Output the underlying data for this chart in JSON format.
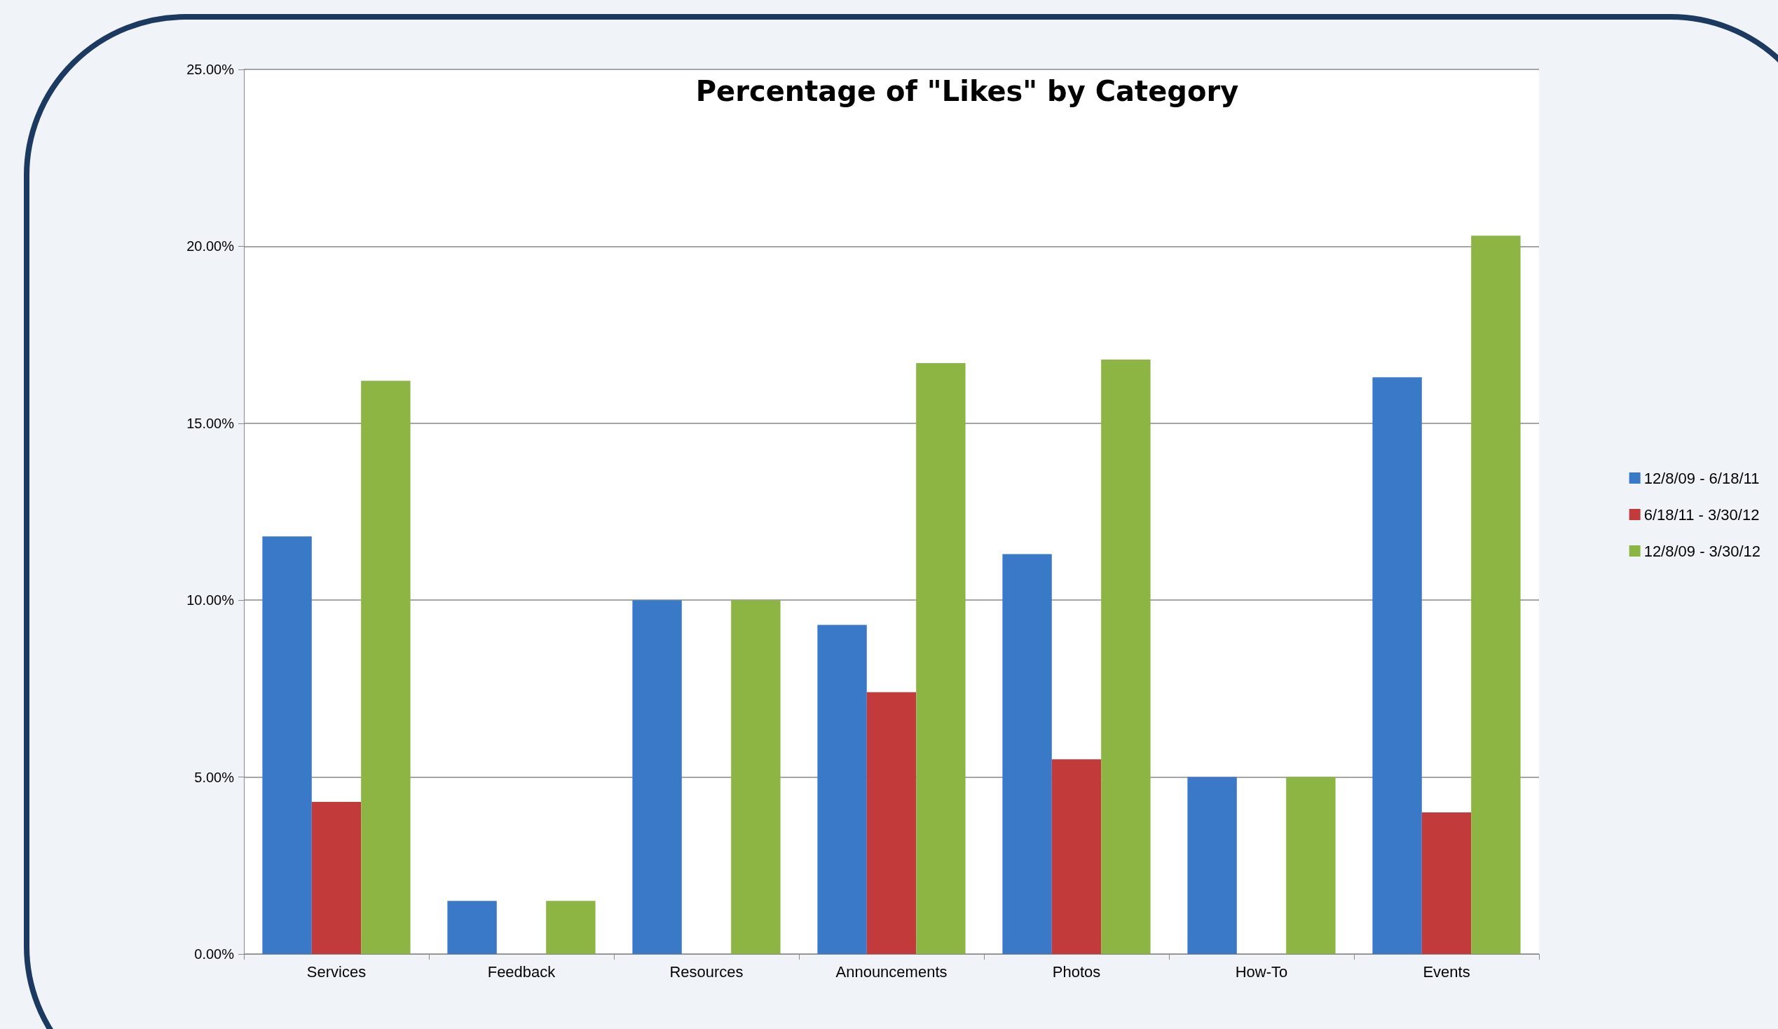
{
  "chart_data": {
    "type": "bar",
    "title": "Percentage of \"Likes\" by Category",
    "categories": [
      "Services",
      "Feedback",
      "Resources",
      "Announcements",
      "Photos",
      "How-To",
      "Events"
    ],
    "series": [
      {
        "name": "12/8/09 - 6/18/11",
        "color": "#3a78c8",
        "values": [
          11.8,
          1.5,
          10.0,
          9.3,
          11.3,
          5.0,
          16.3
        ]
      },
      {
        "name": "6/18/11 - 3/30/12",
        "color": "#c23b3a",
        "values": [
          4.3,
          null,
          null,
          7.4,
          5.5,
          null,
          4.0
        ]
      },
      {
        "name": "12/8/09 - 3/30/12",
        "color": "#8db544",
        "values": [
          16.2,
          1.5,
          10.0,
          16.7,
          16.8,
          5.0,
          20.3
        ]
      }
    ],
    "ylim": [
      0,
      25
    ],
    "yticks": [
      {
        "value": 0,
        "label": "0.00%"
      },
      {
        "value": 5,
        "label": "5.00%"
      },
      {
        "value": 10,
        "label": "10.00%"
      },
      {
        "value": 15,
        "label": "15.00%"
      },
      {
        "value": 20,
        "label": "20.00%"
      },
      {
        "value": 25,
        "label": "25.00%"
      }
    ],
    "grid": "y",
    "legend": "right"
  }
}
